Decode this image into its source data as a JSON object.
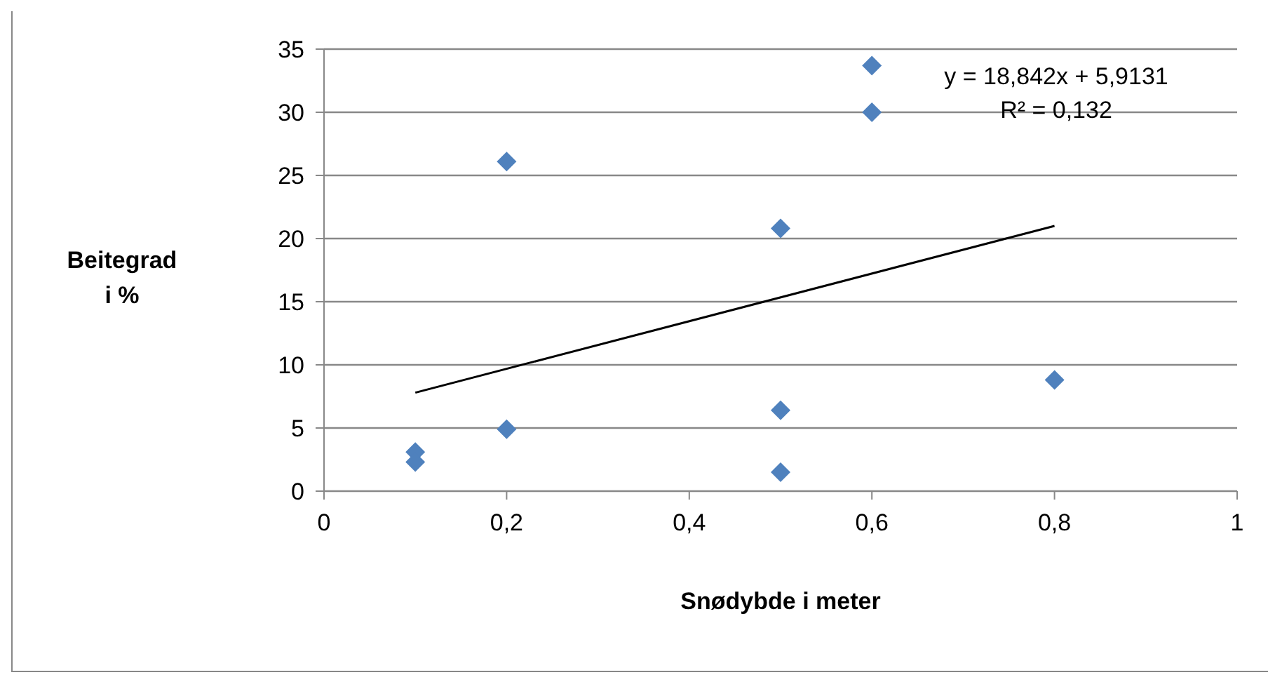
{
  "chart_data": {
    "type": "scatter",
    "xlabel": "Snødybde i meter",
    "ylabel": "Beitegrad i %",
    "annotations": [
      "y = 18,842x + 5,9131",
      "R² = 0,132"
    ],
    "series": [
      {
        "color": "#4f81bd",
        "x": [
          0.1,
          0.1,
          0.2,
          0.2,
          0.5,
          0.5,
          0.5,
          0.6,
          0.6,
          0.8
        ],
        "values": [
          3.1,
          2.3,
          26.1,
          4.9,
          20.8,
          6.4,
          1.5,
          33.7,
          30.0,
          8.8
        ],
        "marker": "diamond"
      },
      {
        "type": "line",
        "color": "#000000",
        "x": [
          0.1,
          0.8
        ],
        "values": [
          7.8,
          21.0
        ],
        "marker": "none"
      }
    ],
    "xlim": [
      0,
      1
    ],
    "xticks": [
      0,
      {
        "value": 0.2,
        "label": "0,2"
      },
      {
        "value": 0.4,
        "label": "0,4"
      },
      {
        "value": 0.6,
        "label": "0,6"
      },
      {
        "value": 0.8,
        "label": "0,8"
      },
      1
    ],
    "ylim": [
      0,
      35
    ],
    "yticks": [
      0,
      5,
      10,
      15,
      20,
      25,
      30,
      35
    ],
    "grid": "y"
  }
}
